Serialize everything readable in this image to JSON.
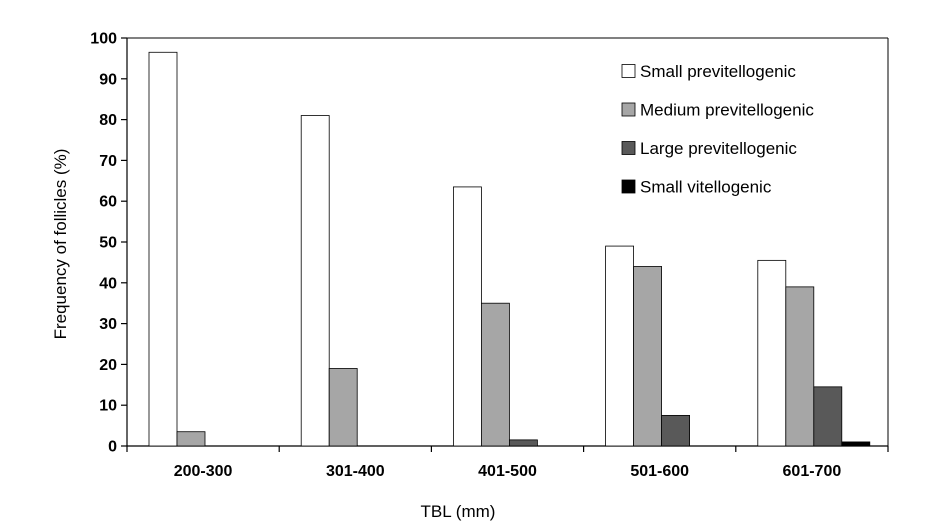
{
  "chart_data": {
    "type": "bar",
    "title": "",
    "xlabel": "TBL (mm)",
    "ylabel": "Frequency of follicles (%)",
    "ylim": [
      0,
      100
    ],
    "yticks": [
      0,
      10,
      20,
      30,
      40,
      50,
      60,
      70,
      80,
      90,
      100
    ],
    "categories": [
      "200-300",
      "301-400",
      "401-500",
      "501-600",
      "601-700"
    ],
    "series": [
      {
        "name": "Small previtellogenic",
        "color": "#ffffff",
        "values": [
          96.5,
          81,
          63.5,
          49,
          45.5
        ]
      },
      {
        "name": "Medium previtellogenic",
        "color": "#a6a6a6",
        "values": [
          3.5,
          19,
          35,
          44,
          39
        ]
      },
      {
        "name": "Large previtellogenic",
        "color": "#595959",
        "values": [
          0,
          0,
          1.5,
          7.5,
          14.5
        ]
      },
      {
        "name": "Small vitellogenic",
        "color": "#000000",
        "values": [
          0,
          0,
          0,
          0,
          1
        ]
      }
    ],
    "legend_position": "top-right",
    "grid": false
  }
}
